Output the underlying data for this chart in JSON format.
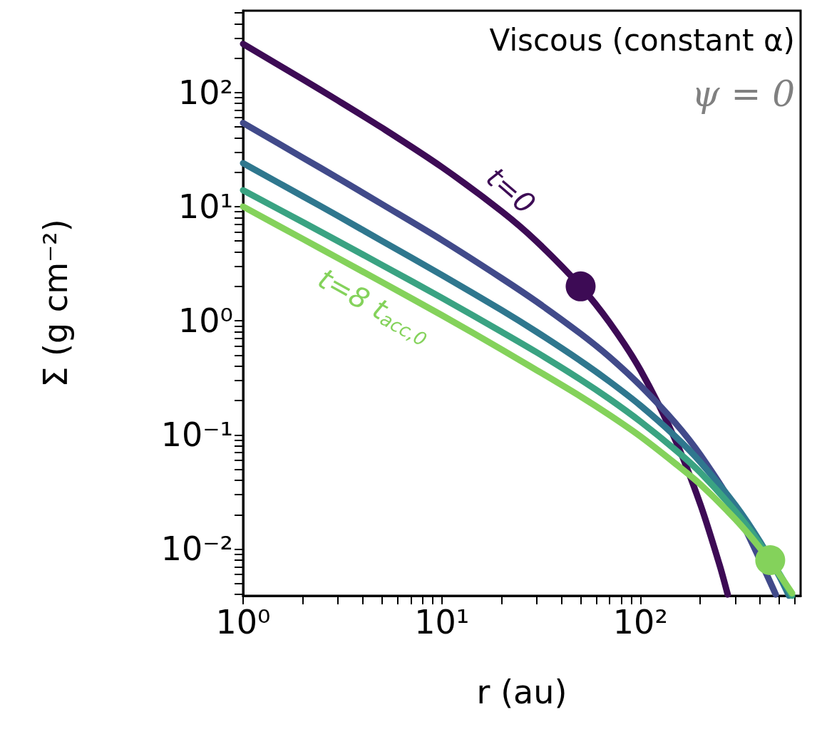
{
  "chart_data": {
    "type": "line",
    "xlabel": "r (au)",
    "ylabel": "Σ (g cm⁻²)",
    "log": "xy",
    "xlim": [
      1,
      640
    ],
    "ylim": [
      0.0039,
      520
    ],
    "xticks": [
      {
        "value": 1,
        "label": "10⁰"
      },
      {
        "value": 2,
        "label": null
      },
      {
        "value": 3,
        "label": null
      },
      {
        "value": 4,
        "label": null
      },
      {
        "value": 5,
        "label": null
      },
      {
        "value": 6,
        "label": null
      },
      {
        "value": 7,
        "label": null
      },
      {
        "value": 8,
        "label": null
      },
      {
        "value": 9,
        "label": null
      },
      {
        "value": 10,
        "label": "10¹"
      },
      {
        "value": 20,
        "label": null
      },
      {
        "value": 30,
        "label": null
      },
      {
        "value": 40,
        "label": null
      },
      {
        "value": 50,
        "label": null
      },
      {
        "value": 60,
        "label": null
      },
      {
        "value": 70,
        "label": null
      },
      {
        "value": 80,
        "label": null
      },
      {
        "value": 90,
        "label": null
      },
      {
        "value": 100,
        "label": "10²"
      },
      {
        "value": 200,
        "label": null
      },
      {
        "value": 300,
        "label": null
      },
      {
        "value": 400,
        "label": null
      },
      {
        "value": 500,
        "label": null
      },
      {
        "value": 600,
        "label": null
      }
    ],
    "yticks": [
      {
        "value": 0.004,
        "label": null
      },
      {
        "value": 0.005,
        "label": null
      },
      {
        "value": 0.006,
        "label": null
      },
      {
        "value": 0.007,
        "label": null
      },
      {
        "value": 0.008,
        "label": null
      },
      {
        "value": 0.009,
        "label": null
      },
      {
        "value": 0.01,
        "label": "10⁻²"
      },
      {
        "value": 0.02,
        "label": null
      },
      {
        "value": 0.03,
        "label": null
      },
      {
        "value": 0.04,
        "label": null
      },
      {
        "value": 0.05,
        "label": null
      },
      {
        "value": 0.06,
        "label": null
      },
      {
        "value": 0.07,
        "label": null
      },
      {
        "value": 0.08,
        "label": null
      },
      {
        "value": 0.09,
        "label": null
      },
      {
        "value": 0.1,
        "label": "10⁻¹"
      },
      {
        "value": 0.2,
        "label": null
      },
      {
        "value": 0.3,
        "label": null
      },
      {
        "value": 0.4,
        "label": null
      },
      {
        "value": 0.5,
        "label": null
      },
      {
        "value": 0.6,
        "label": null
      },
      {
        "value": 0.7,
        "label": null
      },
      {
        "value": 0.8,
        "label": null
      },
      {
        "value": 0.9,
        "label": null
      },
      {
        "value": 1,
        "label": "10⁰"
      },
      {
        "value": 2,
        "label": null
      },
      {
        "value": 3,
        "label": null
      },
      {
        "value": 4,
        "label": null
      },
      {
        "value": 5,
        "label": null
      },
      {
        "value": 6,
        "label": null
      },
      {
        "value": 7,
        "label": null
      },
      {
        "value": 8,
        "label": null
      },
      {
        "value": 9,
        "label": null
      },
      {
        "value": 10,
        "label": "10¹"
      },
      {
        "value": 20,
        "label": null
      },
      {
        "value": 30,
        "label": null
      },
      {
        "value": 40,
        "label": null
      },
      {
        "value": 50,
        "label": null
      },
      {
        "value": 60,
        "label": null
      },
      {
        "value": 70,
        "label": null
      },
      {
        "value": 80,
        "label": null
      },
      {
        "value": 90,
        "label": null
      },
      {
        "value": 100,
        "label": "10²"
      },
      {
        "value": 200,
        "label": null
      },
      {
        "value": 300,
        "label": null
      },
      {
        "value": 400,
        "label": null
      },
      {
        "value": 500,
        "label": null
      }
    ],
    "annotations": [
      "Viscous (constant α)",
      "ψ = 0"
    ],
    "series": [
      {
        "name": "t=0",
        "color": "#3d0b55",
        "x": [
          1,
          2,
          3,
          5,
          10,
          20,
          30,
          50,
          70,
          100,
          150,
          200,
          250,
          275
        ],
        "values": [
          266,
          130,
          85,
          49,
          22.2,
          9.1,
          4.96,
          2.0,
          0.96,
          0.37,
          0.09,
          0.0248,
          0.0073,
          0.004
        ]
      },
      {
        "color": "#414a8a",
        "x": [
          1,
          2,
          3,
          5,
          10,
          20,
          30,
          50,
          70,
          100,
          150,
          200,
          300,
          400,
          480
        ],
        "values": [
          54,
          26.8,
          17.8,
          10.5,
          5.1,
          2.36,
          1.47,
          0.77,
          0.48,
          0.27,
          0.127,
          0.067,
          0.0223,
          null,
          0.004
        ]
      },
      {
        "color": "#2f778e",
        "x": [
          1,
          2,
          3,
          5,
          10,
          20,
          30,
          50,
          70,
          100,
          150,
          200,
          300,
          400,
          500,
          560
        ],
        "values": [
          24,
          12.3,
          8.3,
          5.0,
          2.52,
          1.24,
          0.8,
          0.445,
          0.293,
          0.181,
          0.097,
          0.058,
          0.0244,
          0.0116,
          0.0058,
          0.0039
        ]
      },
      {
        "color": "#3aa382",
        "x": [
          1,
          2,
          3,
          5,
          10,
          20,
          30,
          50,
          70,
          100,
          150,
          200,
          300,
          400,
          500,
          580
        ],
        "values": [
          13.9,
          7.3,
          4.99,
          3.08,
          1.59,
          0.8,
          0.53,
          0.305,
          0.206,
          0.131,
          0.074,
          0.047,
          0.0215,
          0.0111,
          0.0061,
          0.0039
        ]
      },
      {
        "name": "t=8 t$_{acc,0}$",
        "color": "#84d25b",
        "x": [
          1,
          2,
          3,
          5,
          10,
          20,
          30,
          50,
          70,
          100,
          150,
          200,
          300,
          400,
          500,
          580
        ],
        "values": [
          10,
          5.2,
          3.54,
          2.18,
          1.12,
          0.56,
          0.37,
          0.217,
          0.149,
          0.097,
          0.056,
          0.037,
          0.0183,
          0.0102,
          0.006,
          0.0041
        ]
      },
      {
        "type": "scatter",
        "marker": "circle",
        "color": "#3d0b55",
        "x": [
          50
        ],
        "values": [
          2.0
        ]
      },
      {
        "type": "scatter",
        "marker": "circle",
        "color": "#84d25b",
        "x": [
          450
        ],
        "values": [
          0.008
        ]
      }
    ]
  }
}
